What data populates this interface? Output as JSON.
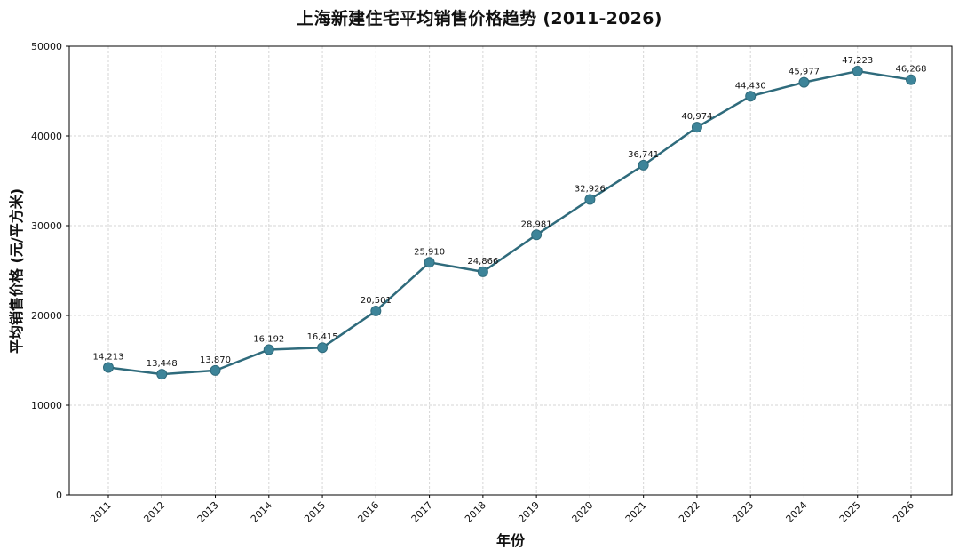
{
  "chart_data": {
    "type": "line",
    "title": "上海新建住宅平均销售价格趋势 (2011-2026)",
    "xlabel": "年份",
    "ylabel": "平均销售价格 (元/平方米)",
    "categories": [
      "2011",
      "2012",
      "2013",
      "2014",
      "2015",
      "2016",
      "2017",
      "2018",
      "2019",
      "2020",
      "2021",
      "2022",
      "2023",
      "2024",
      "2025",
      "2026"
    ],
    "values": [
      14213,
      13448,
      13870,
      16192,
      16415,
      20501,
      25910,
      24866,
      28981,
      32926,
      36741,
      40974,
      44430,
      45977,
      47223,
      46268
    ],
    "data_labels": [
      "14,213",
      "13,448",
      "13,870",
      "16,192",
      "16,415",
      "20,501",
      "25,910",
      "24,866",
      "28,981",
      "32,926",
      "36,741",
      "40,974",
      "44,430",
      "45,977",
      "47,223",
      "46,268"
    ],
    "ylim": [
      0,
      50000
    ],
    "yticks": [
      0,
      10000,
      20000,
      30000,
      40000,
      50000
    ],
    "ytick_labels": [
      "0",
      "10000",
      "20000",
      "30000",
      "40000",
      "50000"
    ],
    "grid": true,
    "legend": null,
    "xtick_rotation": 45,
    "colors": {
      "line": "#2f6b7c",
      "marker": "#3d8499",
      "grid": "#d6d6d6",
      "axis": "#000000"
    }
  }
}
